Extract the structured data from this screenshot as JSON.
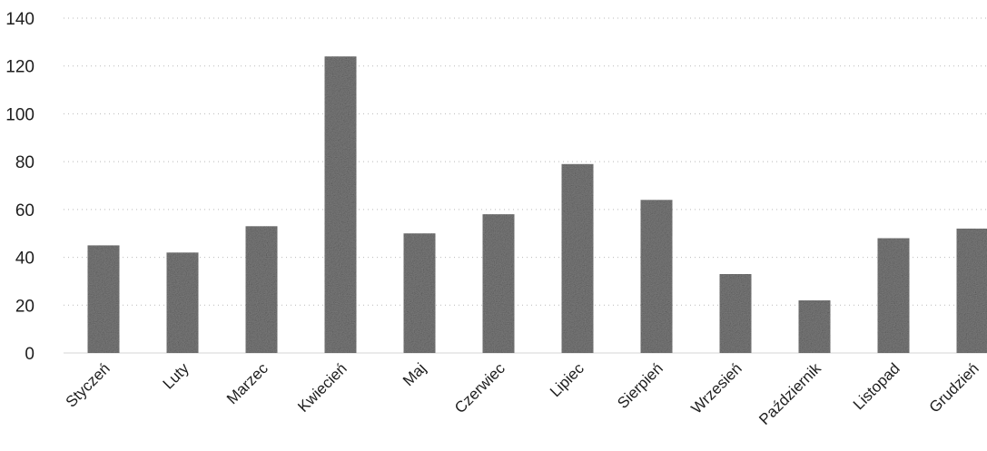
{
  "chart_data": {
    "type": "bar",
    "categories": [
      "Styczeń",
      "Luty",
      "Marzec",
      "Kwiecień",
      "Maj",
      "Czerwiec",
      "Lipiec",
      "Sierpień",
      "Wrzesień",
      "Październik",
      "Listopad",
      "Grudzień"
    ],
    "values": [
      45,
      42,
      53,
      124,
      50,
      58,
      79,
      64,
      33,
      22,
      48,
      52
    ],
    "title": "",
    "xlabel": "",
    "ylabel": "",
    "ylim": [
      0,
      140
    ],
    "yticks": [
      0,
      20,
      40,
      60,
      80,
      100,
      120,
      140
    ],
    "grid": true,
    "legend": "none",
    "bar_color": "#7d7d7d"
  }
}
